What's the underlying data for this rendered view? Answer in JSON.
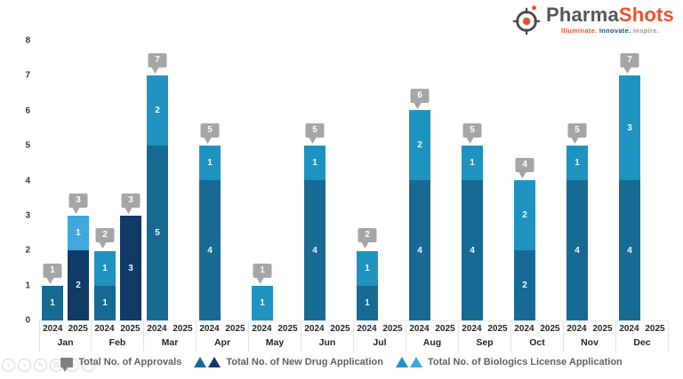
{
  "brand": {
    "name_primary": "Pharma",
    "name_secondary": "Shots",
    "tagline": [
      "Illuminate.",
      "Innovate.",
      "Inspire."
    ],
    "colors": {
      "primary": "#54565B",
      "accent": "#F0512A"
    }
  },
  "legend": {
    "approvals_label": "Total No. of Approvals",
    "nda_label": "Total No. of New Drug Application",
    "bla_label": "Total No. of Biologics License Application",
    "glyph_color": "#7F7F7F"
  },
  "controls": {
    "previous": "‹",
    "next": "›",
    "edit": "✎",
    "copy": "⧉",
    "target": "◎",
    "more": "⋯"
  },
  "chart_data": {
    "type": "bar",
    "stacked": true,
    "title": "",
    "xlabel": "",
    "ylabel": "",
    "ylim": [
      0,
      8
    ],
    "yticks": [
      0,
      1,
      2,
      3,
      4,
      5,
      6,
      7,
      8
    ],
    "grid": false,
    "legend_position": "bottom",
    "year_labels": [
      "2024",
      "2025"
    ],
    "categories": [
      "Jan",
      "Feb",
      "Mar",
      "Apr",
      "May",
      "Jun",
      "Jul",
      "Aug",
      "Sep",
      "Oct",
      "Nov",
      "Dec"
    ],
    "series_names": {
      "total": "Total No. of Approvals",
      "nda": "Total No. of New Drug Application",
      "bla": "Total No. of Biologics License Application"
    },
    "colors": {
      "nda_2024": "#176A94",
      "bla_2024": "#1F93C0",
      "nda_2025": "#113A66",
      "bla_2025": "#3FA9DC",
      "callout": "#A6A6A6"
    },
    "months": [
      {
        "month": "Jan",
        "bars": [
          {
            "year": "2024",
            "nda": 1,
            "bla": 0,
            "total": 1
          },
          {
            "year": "2025",
            "nda": 2,
            "bla": 1,
            "total": 3
          }
        ]
      },
      {
        "month": "Feb",
        "bars": [
          {
            "year": "2024",
            "nda": 1,
            "bla": 1,
            "total": 2
          },
          {
            "year": "2025",
            "nda": 3,
            "bla": 0,
            "total": 3
          }
        ]
      },
      {
        "month": "Mar",
        "bars": [
          {
            "year": "2024",
            "nda": 5,
            "bla": 2,
            "total": 7
          },
          {
            "year": "2025",
            "nda": 0,
            "bla": 0,
            "total": 0
          }
        ]
      },
      {
        "month": "Apr",
        "bars": [
          {
            "year": "2024",
            "nda": 4,
            "bla": 1,
            "total": 5
          },
          {
            "year": "2025",
            "nda": 0,
            "bla": 0,
            "total": 0
          }
        ]
      },
      {
        "month": "May",
        "bars": [
          {
            "year": "2024",
            "nda": 0,
            "bla": 1,
            "total": 1
          },
          {
            "year": "2025",
            "nda": 0,
            "bla": 0,
            "total": 0
          }
        ]
      },
      {
        "month": "Jun",
        "bars": [
          {
            "year": "2024",
            "nda": 4,
            "bla": 1,
            "total": 5
          },
          {
            "year": "2025",
            "nda": 0,
            "bla": 0,
            "total": 0
          }
        ]
      },
      {
        "month": "Jul",
        "bars": [
          {
            "year": "2024",
            "nda": 1,
            "bla": 1,
            "total": 2
          },
          {
            "year": "2025",
            "nda": 0,
            "bla": 0,
            "total": 0
          }
        ]
      },
      {
        "month": "Aug",
        "bars": [
          {
            "year": "2024",
            "nda": 4,
            "bla": 2,
            "total": 6
          },
          {
            "year": "2025",
            "nda": 0,
            "bla": 0,
            "total": 0
          }
        ]
      },
      {
        "month": "Sep",
        "bars": [
          {
            "year": "2024",
            "nda": 4,
            "bla": 1,
            "total": 5
          },
          {
            "year": "2025",
            "nda": 0,
            "bla": 0,
            "total": 0
          }
        ]
      },
      {
        "month": "Oct",
        "bars": [
          {
            "year": "2024",
            "nda": 2,
            "bla": 2,
            "total": 4
          },
          {
            "year": "2025",
            "nda": 0,
            "bla": 0,
            "total": 0
          }
        ]
      },
      {
        "month": "Nov",
        "bars": [
          {
            "year": "2024",
            "nda": 4,
            "bla": 1,
            "total": 5
          },
          {
            "year": "2025",
            "nda": 0,
            "bla": 0,
            "total": 0
          }
        ]
      },
      {
        "month": "Dec",
        "bars": [
          {
            "year": "2024",
            "nda": 4,
            "bla": 3,
            "total": 7
          },
          {
            "year": "2025",
            "nda": 0,
            "bla": 0,
            "total": 0
          }
        ]
      }
    ]
  }
}
